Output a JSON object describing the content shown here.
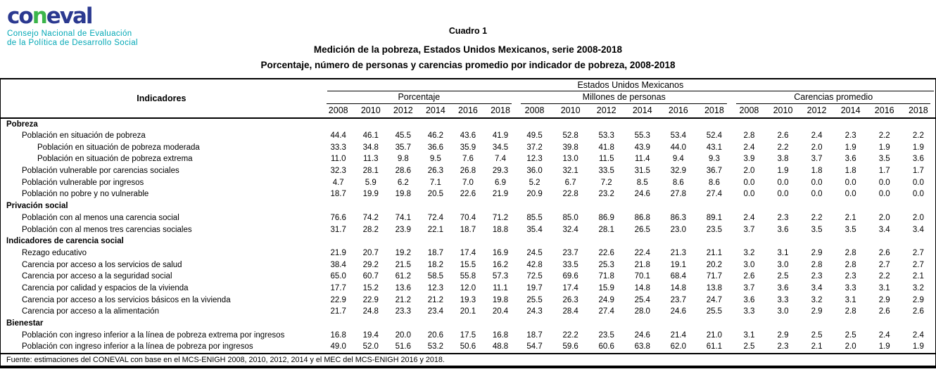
{
  "logo": {
    "wordmark_prefix": "co",
    "wordmark_n": "n",
    "wordmark_suffix": "eval",
    "tagline_line1": "Consejo Nacional de Evaluación",
    "tagline_line2": "de la Política de Desarrollo Social",
    "colors": {
      "blue": "#2b3990",
      "green": "#3bb54a",
      "teal": "#00a7b5"
    }
  },
  "titles": {
    "line1": "Cuadro 1",
    "line2": "Medición de la pobreza, Estados Unidos Mexicanos, serie 2008-2018",
    "line3": "Porcentaje, número de personas y carencias promedio por indicador de pobreza, 2008-2018"
  },
  "table": {
    "indicators_header": "Indicadores",
    "country_header": "Estados Unidos Mexicanos",
    "groups": [
      {
        "label": "Porcentaje",
        "years": [
          "2008",
          "2010",
          "2012",
          "2014",
          "2016",
          "2018"
        ]
      },
      {
        "label": "Millones de personas",
        "years": [
          "2008",
          "2010",
          "2012",
          "2014",
          "2016",
          "2018"
        ]
      },
      {
        "label": "Carencias promedio",
        "years": [
          "2008",
          "2010",
          "2012",
          "2014",
          "2016",
          "2018"
        ]
      }
    ],
    "sections": [
      {
        "title": "Pobreza",
        "rows": [
          {
            "label": "Población en situación de pobreza",
            "indent": 1,
            "porcentaje": [
              "44.4",
              "46.1",
              "45.5",
              "46.2",
              "43.6",
              "41.9"
            ],
            "millones": [
              "49.5",
              "52.8",
              "53.3",
              "55.3",
              "53.4",
              "52.4"
            ],
            "carencias": [
              "2.8",
              "2.6",
              "2.4",
              "2.3",
              "2.2",
              "2.2"
            ]
          },
          {
            "label": "Población en situación de pobreza moderada",
            "indent": 2,
            "porcentaje": [
              "33.3",
              "34.8",
              "35.7",
              "36.6",
              "35.9",
              "34.5"
            ],
            "millones": [
              "37.2",
              "39.8",
              "41.8",
              "43.9",
              "44.0",
              "43.1"
            ],
            "carencias": [
              "2.4",
              "2.2",
              "2.0",
              "1.9",
              "1.9",
              "1.9"
            ]
          },
          {
            "label": "Población en situación de pobreza extrema",
            "indent": 2,
            "porcentaje": [
              "11.0",
              "11.3",
              "9.8",
              "9.5",
              "7.6",
              "7.4"
            ],
            "millones": [
              "12.3",
              "13.0",
              "11.5",
              "11.4",
              "9.4",
              "9.3"
            ],
            "carencias": [
              "3.9",
              "3.8",
              "3.7",
              "3.6",
              "3.5",
              "3.6"
            ]
          },
          {
            "label": "Población vulnerable por carencias sociales",
            "indent": 1,
            "porcentaje": [
              "32.3",
              "28.1",
              "28.6",
              "26.3",
              "26.8",
              "29.3"
            ],
            "millones": [
              "36.0",
              "32.1",
              "33.5",
              "31.5",
              "32.9",
              "36.7"
            ],
            "carencias": [
              "2.0",
              "1.9",
              "1.8",
              "1.8",
              "1.7",
              "1.7"
            ]
          },
          {
            "label": "Población vulnerable por ingresos",
            "indent": 1,
            "porcentaje": [
              "4.7",
              "5.9",
              "6.2",
              "7.1",
              "7.0",
              "6.9"
            ],
            "millones": [
              "5.2",
              "6.7",
              "7.2",
              "8.5",
              "8.6",
              "8.6"
            ],
            "carencias": [
              "0.0",
              "0.0",
              "0.0",
              "0.0",
              "0.0",
              "0.0"
            ]
          },
          {
            "label": "Población no pobre y no vulnerable",
            "indent": 1,
            "porcentaje": [
              "18.7",
              "19.9",
              "19.8",
              "20.5",
              "22.6",
              "21.9"
            ],
            "millones": [
              "20.9",
              "22.8",
              "23.2",
              "24.6",
              "27.8",
              "27.4"
            ],
            "carencias": [
              "0.0",
              "0.0",
              "0.0",
              "0.0",
              "0.0",
              "0.0"
            ]
          }
        ]
      },
      {
        "title": "Privación social",
        "rows": [
          {
            "label": "Población con al menos una carencia social",
            "indent": 1,
            "porcentaje": [
              "76.6",
              "74.2",
              "74.1",
              "72.4",
              "70.4",
              "71.2"
            ],
            "millones": [
              "85.5",
              "85.0",
              "86.9",
              "86.8",
              "86.3",
              "89.1"
            ],
            "carencias": [
              "2.4",
              "2.3",
              "2.2",
              "2.1",
              "2.0",
              "2.0"
            ]
          },
          {
            "label": "Población con al menos tres carencias sociales",
            "indent": 1,
            "porcentaje": [
              "31.7",
              "28.2",
              "23.9",
              "22.1",
              "18.7",
              "18.8"
            ],
            "millones": [
              "35.4",
              "32.4",
              "28.1",
              "26.5",
              "23.0",
              "23.5"
            ],
            "carencias": [
              "3.7",
              "3.6",
              "3.5",
              "3.5",
              "3.4",
              "3.4"
            ]
          }
        ]
      },
      {
        "title": "Indicadores de carencia social",
        "rows": [
          {
            "label": "Rezago educativo",
            "indent": 1,
            "porcentaje": [
              "21.9",
              "20.7",
              "19.2",
              "18.7",
              "17.4",
              "16.9"
            ],
            "millones": [
              "24.5",
              "23.7",
              "22.6",
              "22.4",
              "21.3",
              "21.1"
            ],
            "carencias": [
              "3.2",
              "3.1",
              "2.9",
              "2.8",
              "2.6",
              "2.7"
            ]
          },
          {
            "label": "Carencia por acceso a los servicios de salud",
            "indent": 1,
            "porcentaje": [
              "38.4",
              "29.2",
              "21.5",
              "18.2",
              "15.5",
              "16.2"
            ],
            "millones": [
              "42.8",
              "33.5",
              "25.3",
              "21.8",
              "19.1",
              "20.2"
            ],
            "carencias": [
              "3.0",
              "3.0",
              "2.8",
              "2.8",
              "2.7",
              "2.7"
            ]
          },
          {
            "label": "Carencia por acceso a la seguridad social",
            "indent": 1,
            "porcentaje": [
              "65.0",
              "60.7",
              "61.2",
              "58.5",
              "55.8",
              "57.3"
            ],
            "millones": [
              "72.5",
              "69.6",
              "71.8",
              "70.1",
              "68.4",
              "71.7"
            ],
            "carencias": [
              "2.6",
              "2.5",
              "2.3",
              "2.3",
              "2.2",
              "2.1"
            ]
          },
          {
            "label": "Carencia por calidad y espacios de la vivienda",
            "indent": 1,
            "porcentaje": [
              "17.7",
              "15.2",
              "13.6",
              "12.3",
              "12.0",
              "11.1"
            ],
            "millones": [
              "19.7",
              "17.4",
              "15.9",
              "14.8",
              "14.8",
              "13.8"
            ],
            "carencias": [
              "3.7",
              "3.6",
              "3.4",
              "3.3",
              "3.1",
              "3.2"
            ]
          },
          {
            "label": "Carencia por acceso a los servicios básicos en la vivienda",
            "indent": 1,
            "porcentaje": [
              "22.9",
              "22.9",
              "21.2",
              "21.2",
              "19.3",
              "19.8"
            ],
            "millones": [
              "25.5",
              "26.3",
              "24.9",
              "25.4",
              "23.7",
              "24.7"
            ],
            "carencias": [
              "3.6",
              "3.3",
              "3.2",
              "3.1",
              "2.9",
              "2.9"
            ]
          },
          {
            "label": "Carencia por acceso a la alimentación",
            "indent": 1,
            "porcentaje": [
              "21.7",
              "24.8",
              "23.3",
              "23.4",
              "20.1",
              "20.4"
            ],
            "millones": [
              "24.3",
              "28.4",
              "27.4",
              "28.0",
              "24.6",
              "25.5"
            ],
            "carencias": [
              "3.3",
              "3.0",
              "2.9",
              "2.8",
              "2.6",
              "2.6"
            ]
          }
        ]
      },
      {
        "title": "Bienestar",
        "rows": [
          {
            "label": "Población con ingreso inferior a la línea de pobreza extrema por ingresos",
            "indent": 1,
            "porcentaje": [
              "16.8",
              "19.4",
              "20.0",
              "20.6",
              "17.5",
              "16.8"
            ],
            "millones": [
              "18.7",
              "22.2",
              "23.5",
              "24.6",
              "21.4",
              "21.0"
            ],
            "carencias": [
              "3.1",
              "2.9",
              "2.5",
              "2.5",
              "2.4",
              "2.4"
            ]
          },
          {
            "label": "Población con ingreso inferior a la línea de pobreza por ingresos",
            "indent": 1,
            "porcentaje": [
              "49.0",
              "52.0",
              "51.6",
              "53.2",
              "50.6",
              "48.8"
            ],
            "millones": [
              "54.7",
              "59.6",
              "60.6",
              "63.8",
              "62.0",
              "61.1"
            ],
            "carencias": [
              "2.5",
              "2.3",
              "2.1",
              "2.0",
              "1.9",
              "1.9"
            ]
          }
        ]
      }
    ]
  },
  "footer": {
    "source": "Fuente: estimaciones del CONEVAL con base en el MCS-ENIGH 2008, 2010, 2012, 2014 y el MEC del MCS-ENIGH 2016 y 2018."
  }
}
